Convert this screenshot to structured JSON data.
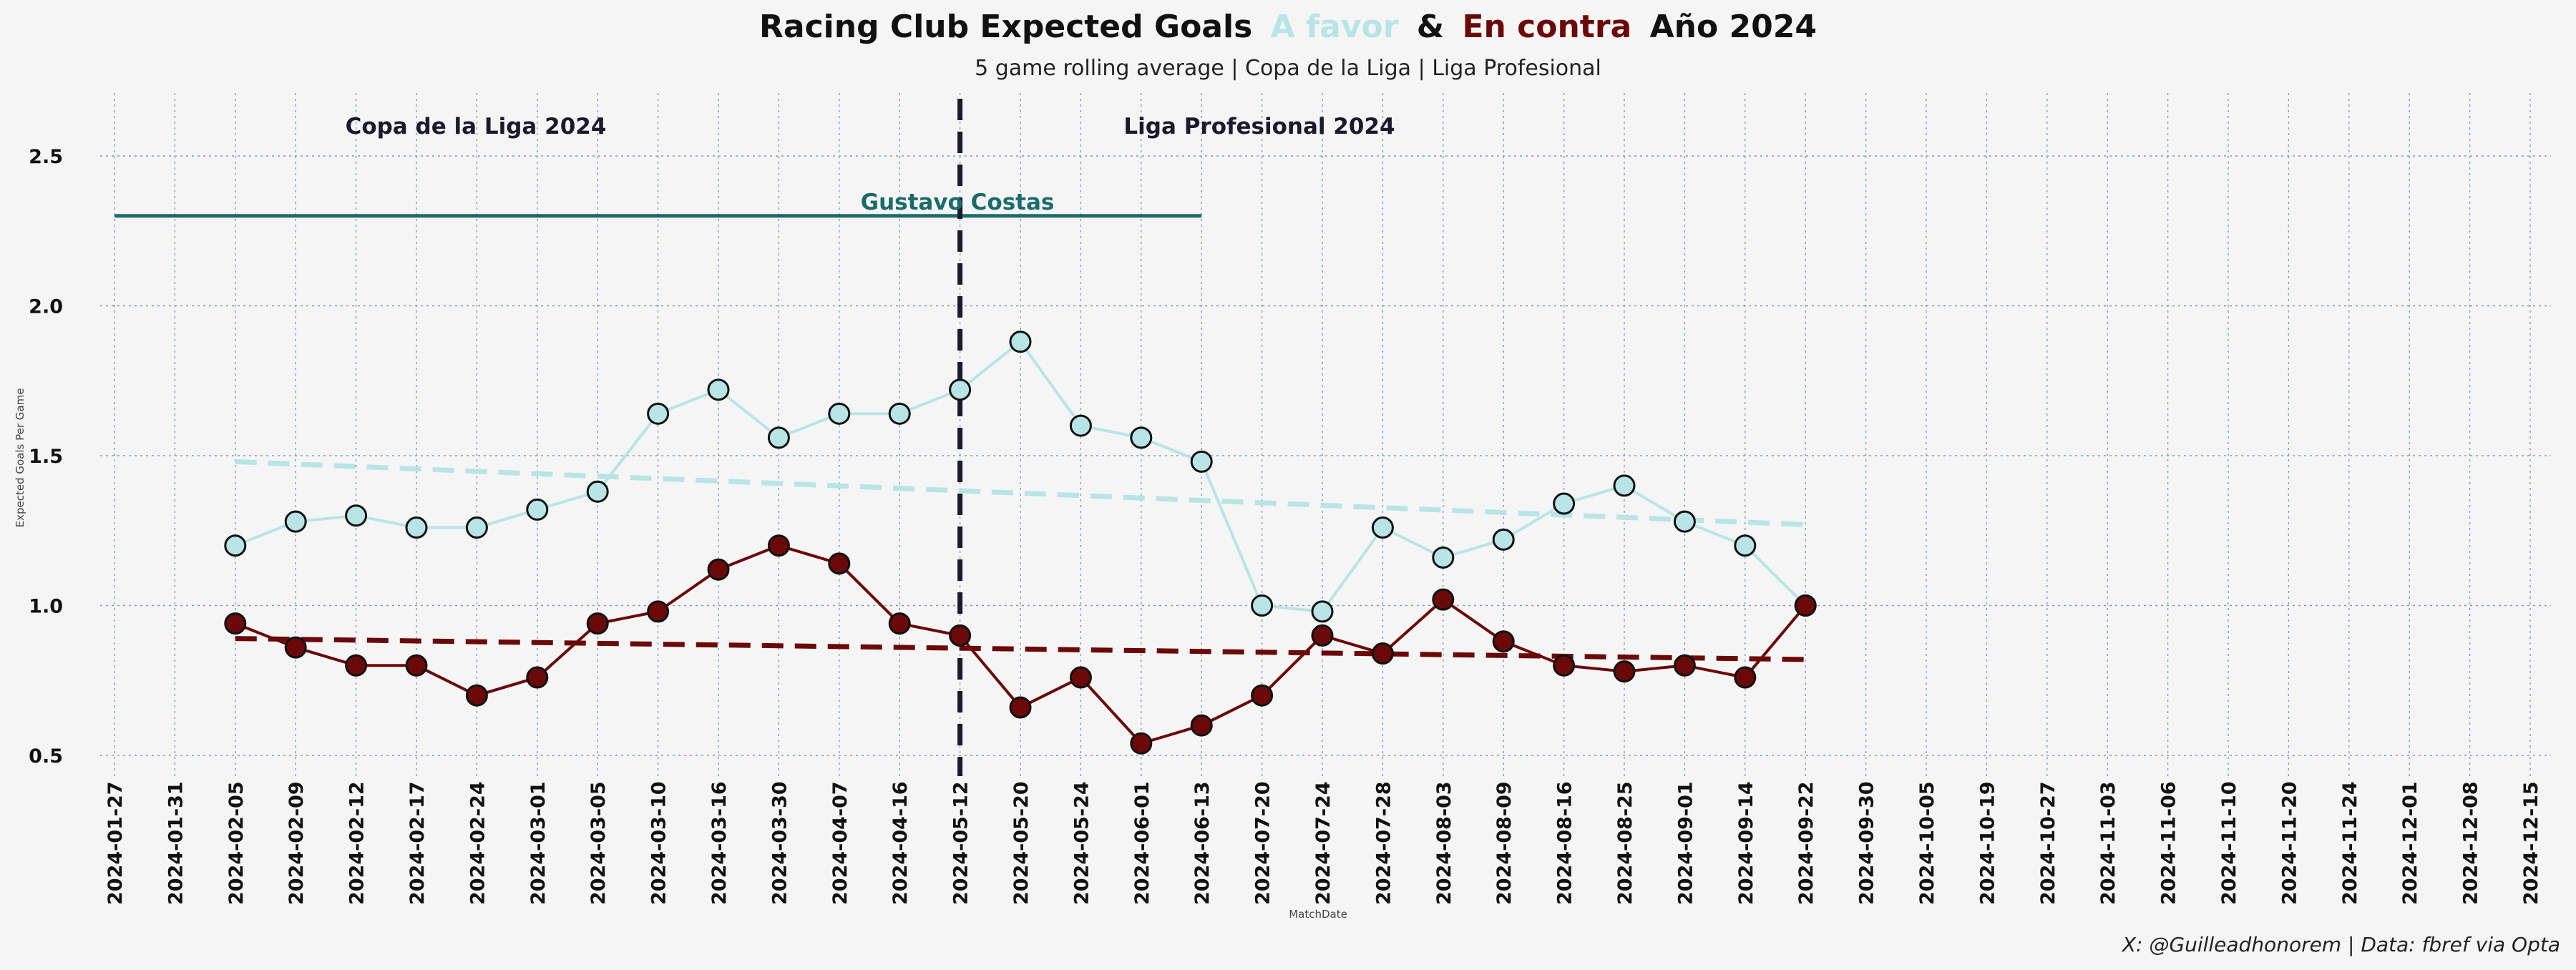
{
  "title": {
    "part1": "Racing Club Expected Goals",
    "part2": "A favor",
    "part3": "&",
    "part4": "En contra",
    "part5": "Año 2024"
  },
  "subtitle": "5 game rolling average | Copa de la Liga | Liga Profesional",
  "credit": "X: @Guilleadhonorem | Data: fbref via Opta",
  "colors": {
    "background": "#f5f5f5",
    "favor": "#b8e4e6",
    "contra": "#6b0808",
    "coach": "#1b6b6b",
    "divider": "#1a1a2e",
    "grid": "#7f9bb8"
  },
  "annotations": {
    "competition1": "Copa de la Liga 2024",
    "competition2": "Liga Profesional 2024",
    "coach": "Gustavo Costas"
  },
  "chart_data": {
    "type": "line",
    "title": "Racing Club Expected Goals A favor & En contra Año 2024",
    "subtitle": "5 game rolling average | Copa de la Liga | Liga Profesional",
    "xlabel": "MatchDate",
    "ylabel": "Expected Goals Per Game",
    "ylim": [
      0.4,
      2.7
    ],
    "yticks": [
      "0.5",
      "1.0",
      "1.5",
      "2.0",
      "2.5"
    ],
    "grid": true,
    "categories": [
      "2024-01-27",
      "2024-01-31",
      "2024-02-05",
      "2024-02-09",
      "2024-02-12",
      "2024-02-17",
      "2024-02-24",
      "2024-03-01",
      "2024-03-05",
      "2024-03-10",
      "2024-03-16",
      "2024-03-30",
      "2024-04-07",
      "2024-04-16",
      "2024-05-12",
      "2024-05-20",
      "2024-05-24",
      "2024-06-01",
      "2024-06-13",
      "2024-07-20",
      "2024-07-24",
      "2024-07-28",
      "2024-08-03",
      "2024-08-09",
      "2024-08-16",
      "2024-08-25",
      "2024-09-01",
      "2024-09-14",
      "2024-09-22",
      "2024-09-30",
      "2024-10-05",
      "2024-10-19",
      "2024-10-27",
      "2024-11-03",
      "2024-11-06",
      "2024-11-10",
      "2024-11-20",
      "2024-11-24",
      "2024-12-01",
      "2024-12-08",
      "2024-12-15"
    ],
    "series": [
      {
        "name": "A favor",
        "values": [
          null,
          null,
          1.2,
          1.28,
          1.3,
          1.26,
          1.26,
          1.32,
          1.38,
          1.64,
          1.72,
          1.56,
          1.64,
          1.64,
          1.72,
          1.88,
          1.6,
          1.56,
          1.48,
          1.0,
          0.98,
          1.26,
          1.16,
          1.22,
          1.34,
          1.4,
          1.28,
          1.2,
          1.0,
          null,
          null,
          null,
          null,
          null,
          null,
          null,
          null,
          null,
          null,
          null,
          null
        ],
        "trend": [
          1.48,
          1.27
        ]
      },
      {
        "name": "En contra",
        "values": [
          null,
          null,
          0.94,
          0.86,
          0.8,
          0.8,
          0.7,
          0.76,
          0.94,
          0.98,
          1.12,
          1.2,
          1.14,
          0.94,
          0.9,
          0.66,
          0.76,
          0.54,
          0.6,
          0.7,
          0.9,
          0.84,
          1.02,
          0.88,
          0.8,
          0.78,
          0.8,
          0.76,
          1.0,
          null,
          null,
          null,
          null,
          null,
          null,
          null,
          null,
          null,
          null,
          null,
          null
        ],
        "trend": [
          0.89,
          0.82
        ]
      }
    ],
    "trend_range": [
      "2024-02-05",
      "2024-09-22"
    ],
    "divider_at": "2024-05-12",
    "coach_line": {
      "label": "Gustavo Costas",
      "y": 2.3,
      "from": "2024-01-27",
      "to": "2024-06-13"
    }
  }
}
